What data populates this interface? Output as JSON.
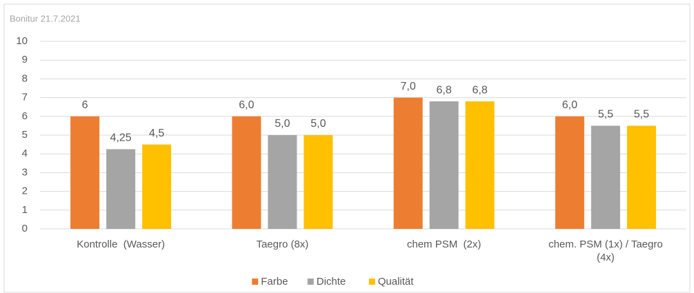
{
  "chart_data": {
    "type": "bar",
    "title": "Bonitur 21.7.2021",
    "categories": [
      "Kontrolle  (Wasser)",
      "Taegro (8x)",
      "chem PSM  (2x)",
      "chem. PSM (1x) / Taegro (4x)"
    ],
    "series": [
      {
        "name": "Farbe",
        "color": "#ed7d31",
        "values": [
          6,
          6,
          7,
          6
        ],
        "value_labels": [
          "6",
          "6,0",
          "7,0",
          "6,0"
        ]
      },
      {
        "name": "Dichte",
        "color": "#a5a5a5",
        "values": [
          4.25,
          5,
          6.8,
          5.5
        ],
        "value_labels": [
          "4,25",
          "5,0",
          "6,8",
          "5,5"
        ]
      },
      {
        "name": "Qualität",
        "color": "#ffc000",
        "values": [
          4.5,
          5,
          6.8,
          5.5
        ],
        "value_labels": [
          "4,5",
          "5,0",
          "6,8",
          "5,5"
        ]
      }
    ],
    "ylim": [
      0,
      10
    ],
    "yticks": [
      0,
      1,
      2,
      3,
      4,
      5,
      6,
      7,
      8,
      9,
      10
    ],
    "grid": true,
    "legend": "bottom"
  }
}
